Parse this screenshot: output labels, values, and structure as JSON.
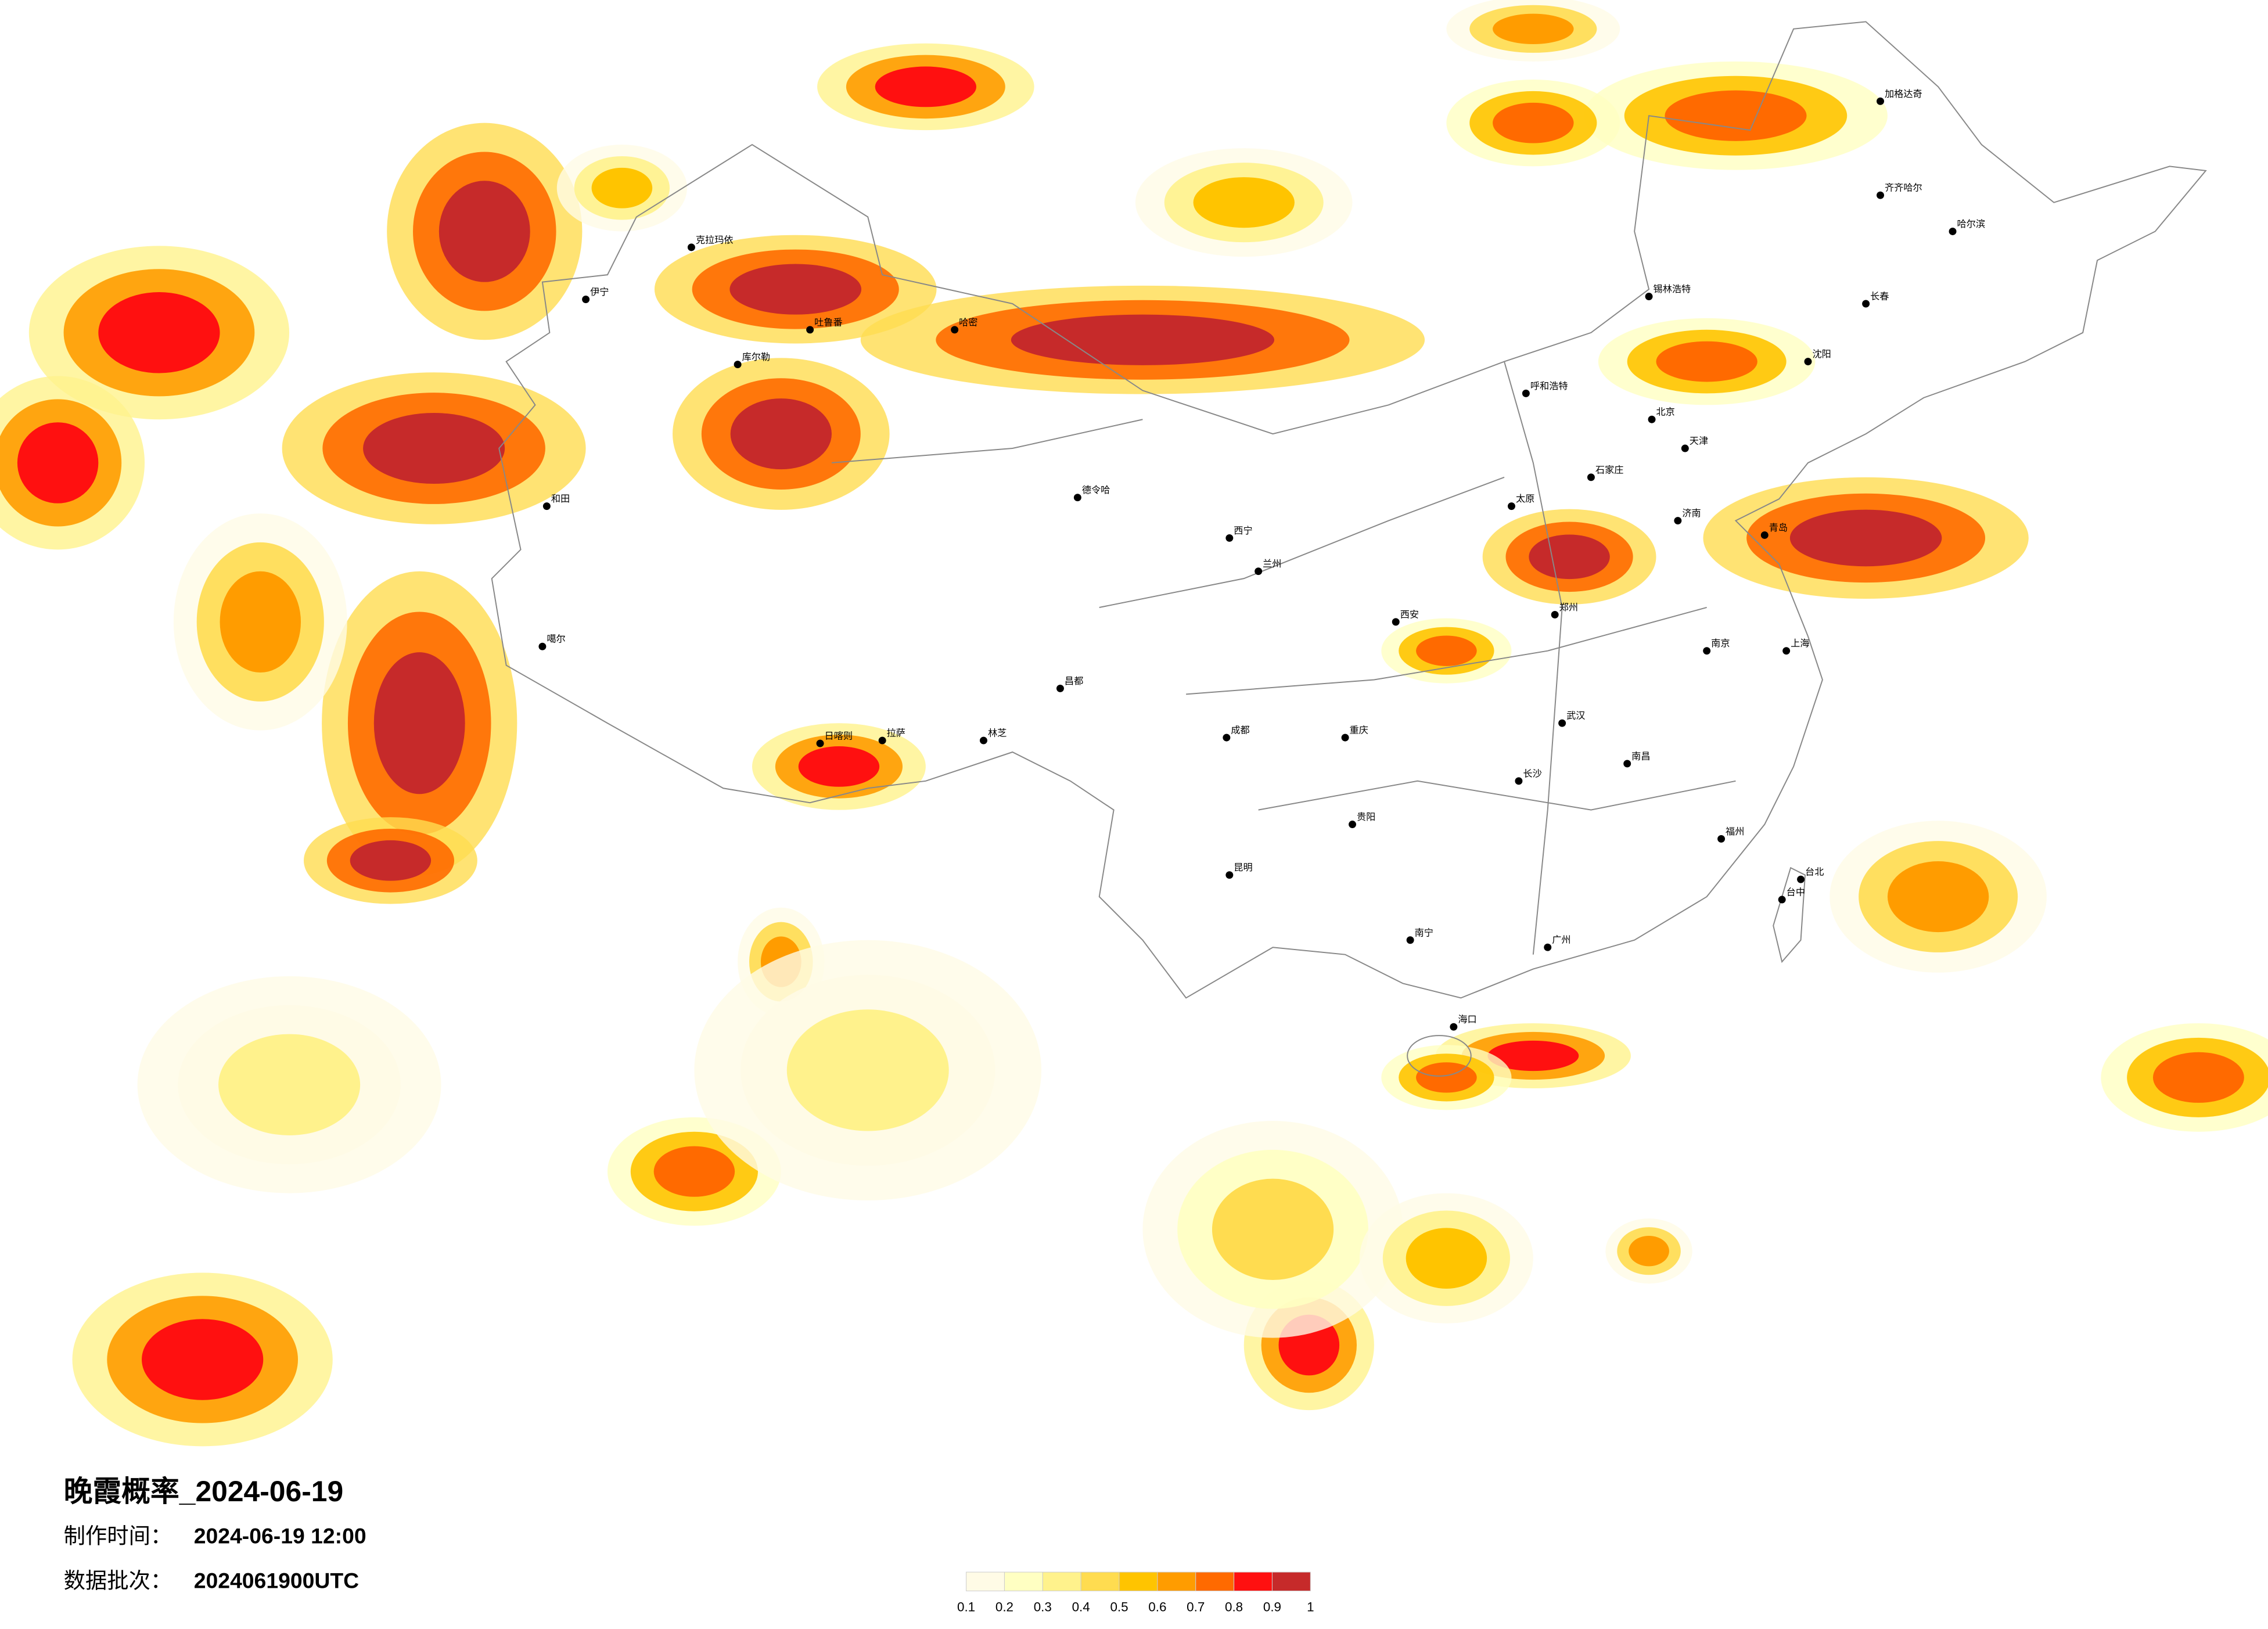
{
  "title": "晚霞概率_2024-06-19",
  "made_label": "制作时间：",
  "made_time": "2024-06-19 12:00",
  "batch_label": "数据批次：",
  "batch": "2024061900UTC",
  "legend": {
    "colors": [
      "#fffbe6",
      "#ffffc2",
      "#fff28c",
      "#ffdc50",
      "#ffc400",
      "#ff9c00",
      "#ff6a00",
      "#ff1010",
      "#c62a2a"
    ],
    "ticks": [
      0.1,
      0.2,
      0.3,
      0.4,
      0.5,
      0.6,
      0.7,
      0.8,
      0.9,
      1
    ]
  },
  "cities": [
    "克拉玛依",
    "伊宁",
    "吐鲁番",
    "哈密",
    "库尔勒",
    "和田",
    "噶尔",
    "日喀则",
    "拉萨",
    "林芝",
    "昌都",
    "德令哈",
    "西宁",
    "兰州",
    "成都",
    "重庆",
    "贵阳",
    "昆明",
    "南宁",
    "广州",
    "海口",
    "福州",
    "台北",
    "台中",
    "上海",
    "南京",
    "武汉",
    "长沙",
    "南昌",
    "郑州",
    "西安",
    "北京",
    "天津",
    "石家庄",
    "太原",
    "呼和浩特",
    "沈阳",
    "长春",
    "哈尔滨",
    "齐齐哈尔",
    "加格达奇",
    "青岛",
    "济南",
    "锡林浩特"
  ]
}
